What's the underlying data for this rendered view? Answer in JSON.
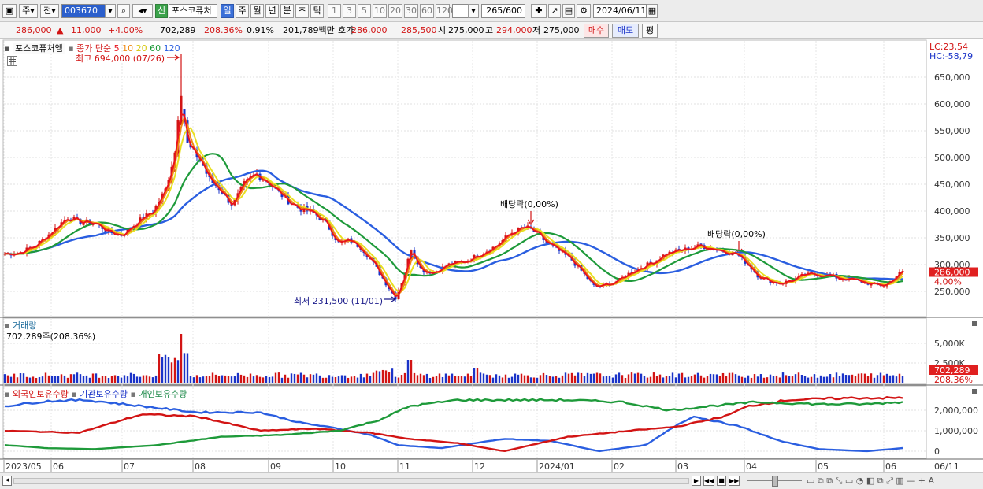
{
  "toolbar": {
    "market": "주",
    "prev": "전",
    "code": "003670",
    "stock_name": "포스코퓨처",
    "badge_new": "신",
    "periods": [
      "일",
      "주",
      "월",
      "년",
      "분",
      "초",
      "틱"
    ],
    "period_active": "일",
    "intervals": [
      "1",
      "3",
      "5",
      "10",
      "20",
      "30",
      "60",
      "120"
    ],
    "count": "265",
    "count_total": "/600",
    "date": "2024/06/11"
  },
  "info": {
    "price": "286,000",
    "arrow": "▲",
    "change": "11,000",
    "change_pct": "+4.00%",
    "volume": "702,289",
    "volume_ratio": "208.36%",
    "turnover": "0.91%",
    "amount": "201,789백만",
    "quote_label": "호가",
    "bid": "286,000",
    "ask": "285,500",
    "open_label": "시",
    "open": "275,000",
    "high_label": "고",
    "high": "294,000",
    "low_label": "저",
    "low": "275,000",
    "buy_btn": "매수",
    "sell_btn": "매도",
    "eval_btn": "평"
  },
  "main_chart": {
    "title": "포스코퓨처엠",
    "legend_prefix": "종가 단순",
    "ma": [
      {
        "label": "5",
        "color": "#e8141e"
      },
      {
        "label": "10",
        "color": "#f08a14"
      },
      {
        "label": "20",
        "color": "#e8e020"
      },
      {
        "label": "60",
        "color": "#1e9a3a"
      },
      {
        "label": "120",
        "color": "#2a5ee0"
      }
    ],
    "lc": "LC:23,54",
    "hc": "HC:-58,79",
    "high_note": "최고 694,000 (07/26)",
    "low_note": "최저 231,500 (11/01)",
    "dividend1": "배당락(0,00%)",
    "dividend2": "배당락(0,00%)",
    "y_ticks": [
      "650,000",
      "600,000",
      "550,000",
      "500,000",
      "450,000",
      "400,000",
      "350,000",
      "300,000",
      "250,000"
    ],
    "current_price": "286,000",
    "current_pct": "4.00%"
  },
  "volume_chart": {
    "title": "거래량",
    "value_text": "702,289주(208.36%)",
    "y_ticks": [
      "5,000K",
      "2,500K"
    ],
    "current": "702,289",
    "current_pct": "208.36%"
  },
  "holdings_chart": {
    "foreign": "외국인보유수량",
    "institution": "기관보유수량",
    "individual": "개인보유수량",
    "y_ticks": [
      "2,000,000",
      "1,000,000",
      "0"
    ]
  },
  "x_axis": [
    "2023/05",
    "06",
    "07",
    "08",
    "09",
    "10",
    "11",
    "12",
    "2024/01",
    "02",
    "03",
    "04",
    "05",
    "06",
    "06/11"
  ],
  "colors": {
    "up": "#d21414",
    "down": "#1a33c8",
    "ma5": "#e8141e",
    "ma10": "#f08a14",
    "ma20": "#e8e020",
    "ma60": "#1e9a3a",
    "ma120": "#2a5ee0"
  }
}
